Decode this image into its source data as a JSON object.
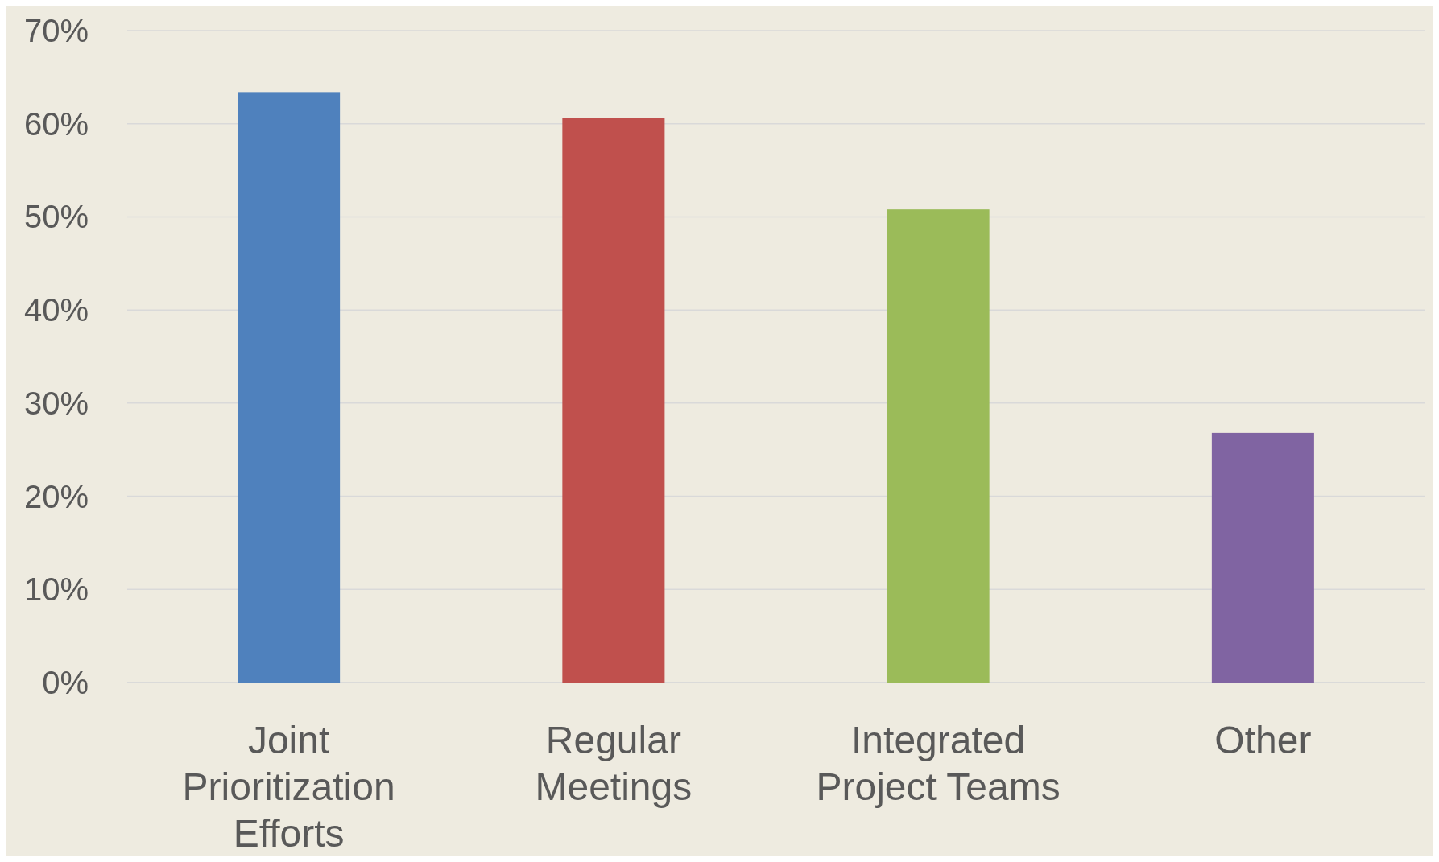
{
  "chart_data": {
    "type": "bar",
    "categories": [
      "Joint Prioritization Efforts",
      "Regular Meetings",
      "Integrated Project Teams",
      "Other"
    ],
    "values": [
      63.4,
      60.6,
      50.8,
      26.8
    ],
    "colors": [
      "#4f81bd",
      "#c0504d",
      "#9bbb59",
      "#8064a2"
    ],
    "ylim": [
      0,
      70
    ],
    "yticks": [
      {
        "value": 0,
        "label": "0%"
      },
      {
        "value": 10,
        "label": "10%"
      },
      {
        "value": 20,
        "label": "20%"
      },
      {
        "value": 30,
        "label": "30%"
      },
      {
        "value": 40,
        "label": "40%"
      },
      {
        "value": 50,
        "label": "50%"
      },
      {
        "value": 60,
        "label": "60%"
      },
      {
        "value": 70,
        "label": "70%"
      }
    ],
    "grid": "y"
  }
}
